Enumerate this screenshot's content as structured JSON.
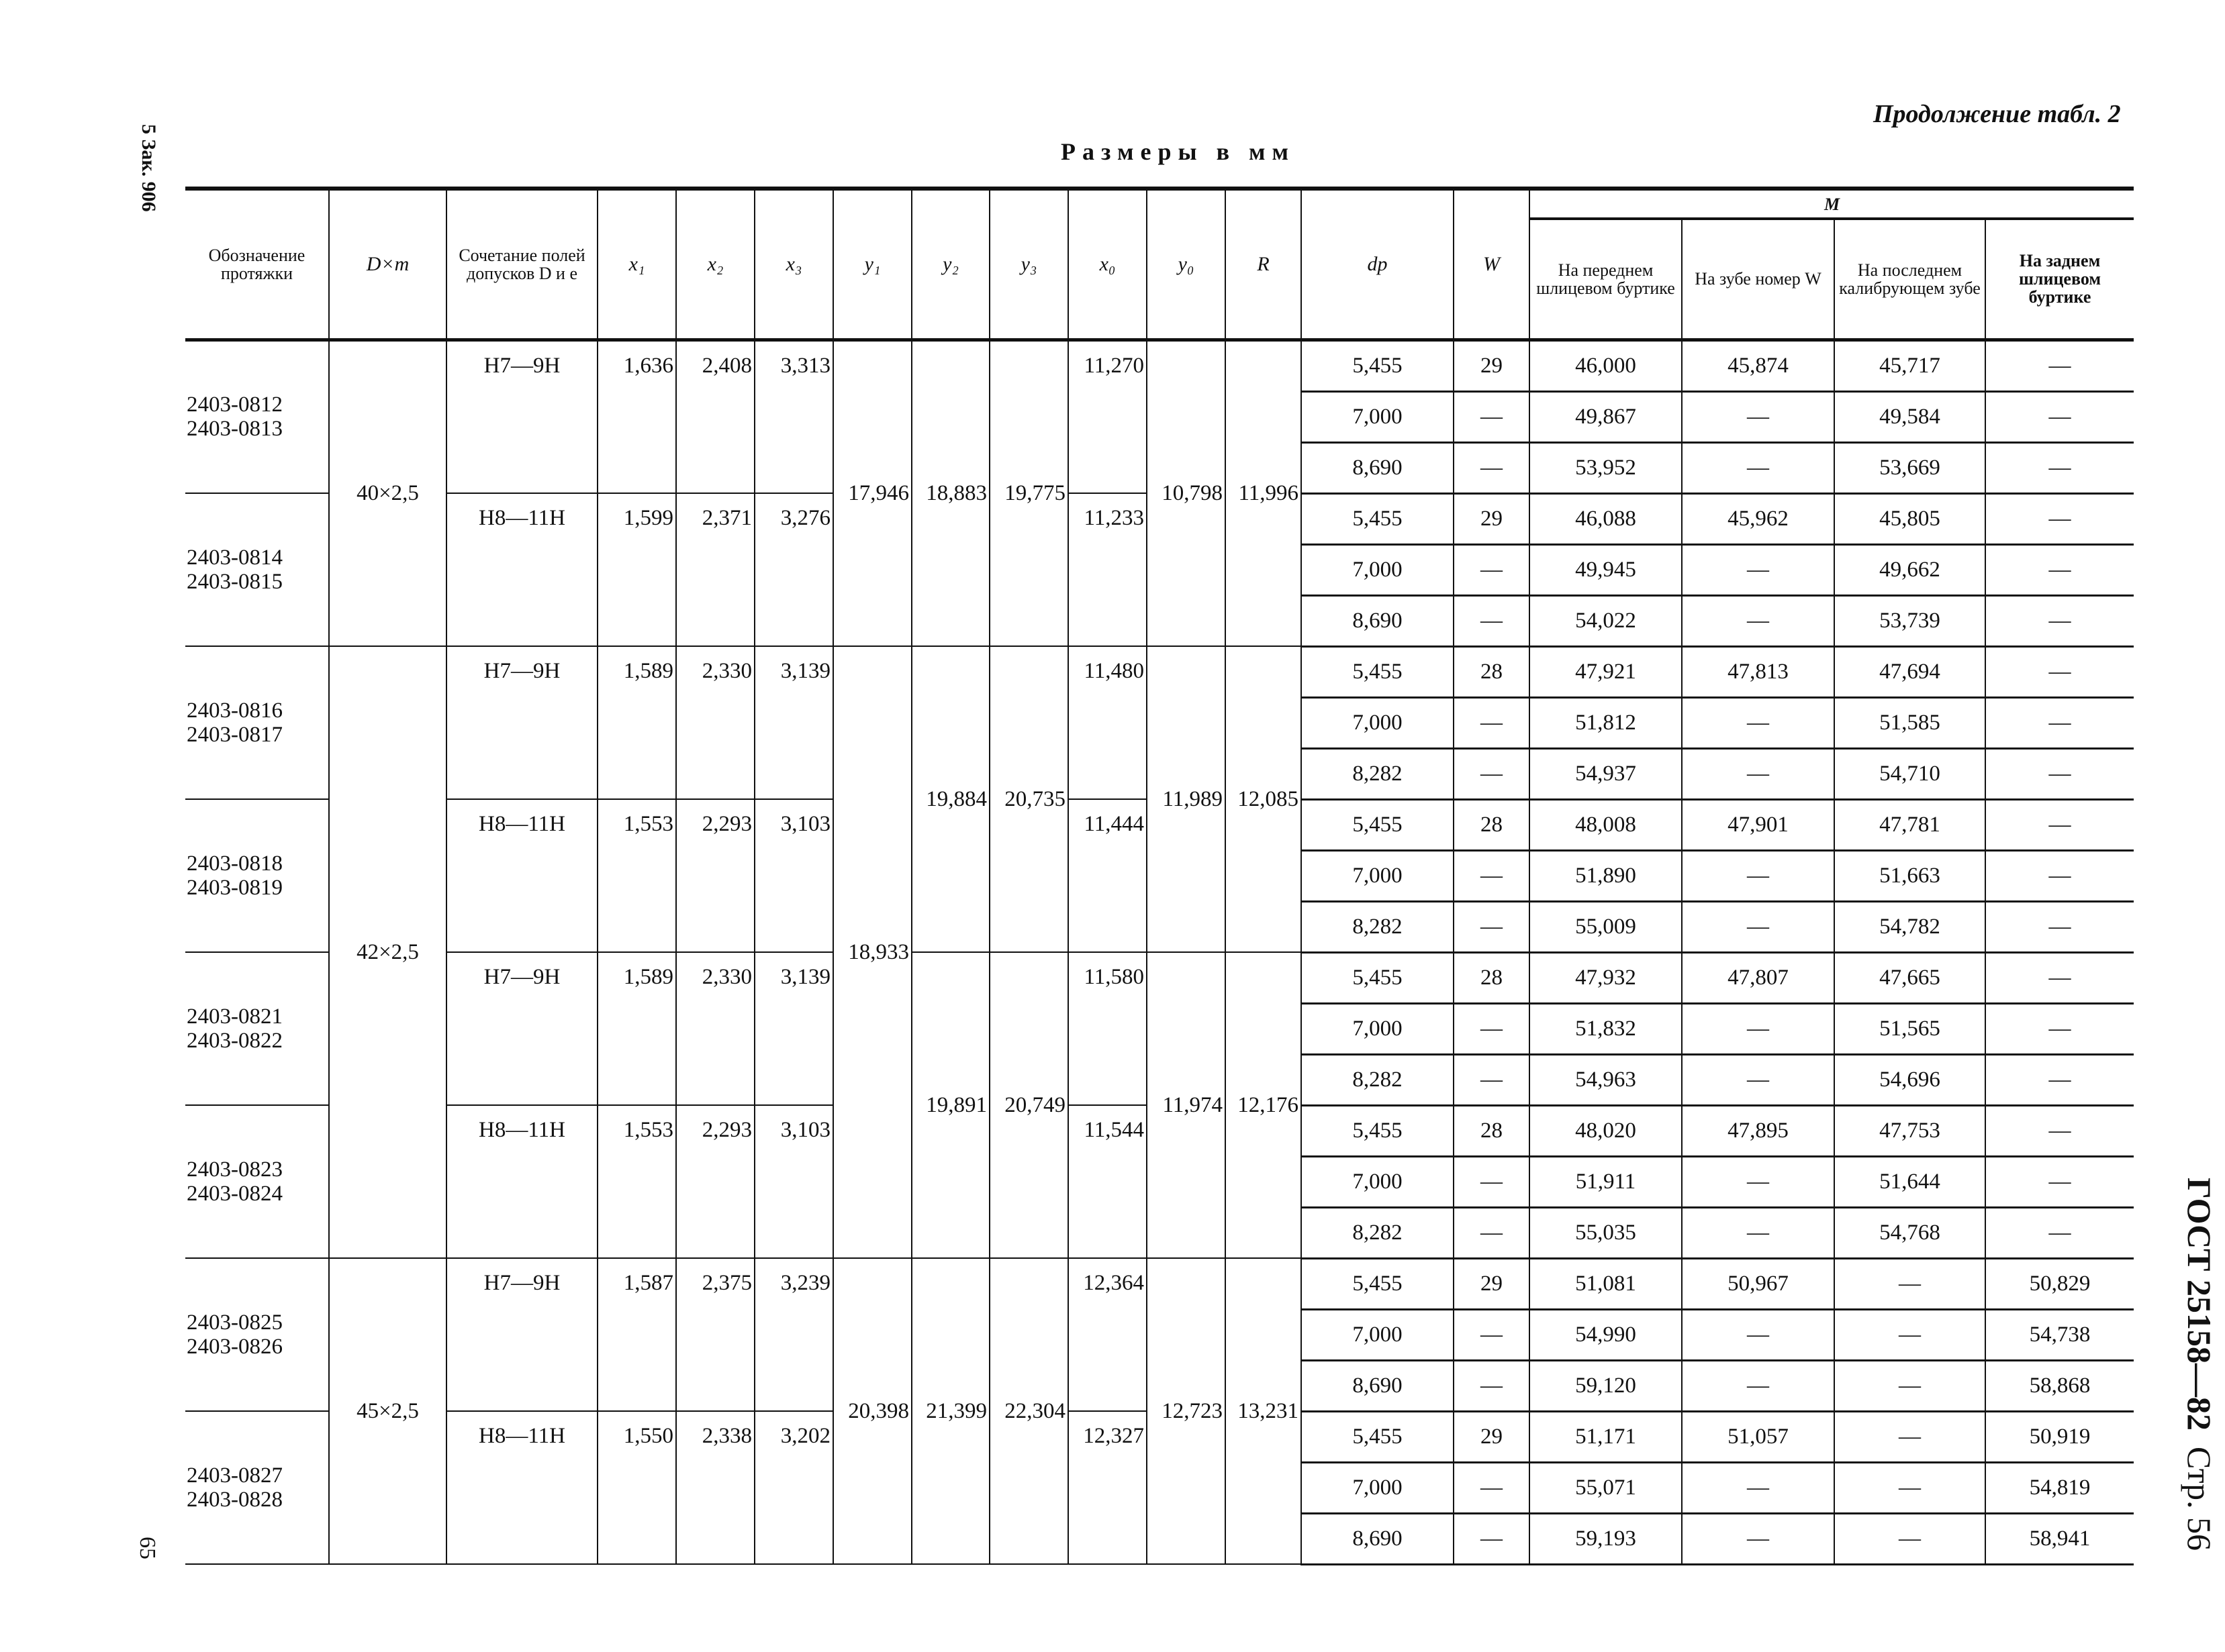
{
  "continuation": "Продолжение табл. 2",
  "units": "Размеры в мм",
  "left_margin_top": "5   Зак. 906",
  "left_margin_bottom": "65",
  "right_margin": {
    "standard": "ГОСТ 25158—82",
    "page": "Стр. 56"
  },
  "headers": {
    "designation": "Обозначение протяжки",
    "dxm": "D×m",
    "tolerance": "Сочетание полей допусков D и e",
    "x1": "x₁",
    "x2": "x₂",
    "x3": "x₃",
    "y1": "y₁",
    "y2": "y₂",
    "y3": "y₃",
    "x0": "x₀",
    "y0": "y₀",
    "R": "R",
    "dp": "dp",
    "W": "W",
    "M": "M",
    "m1": "На переднем шлицевом буртике",
    "m2": "На зубе номер W",
    "m3": "На последнем калибрующем зубе",
    "m4": "На заднем шлицевом буртике"
  },
  "dxm_blocks": [
    {
      "value": "40×2,5",
      "groups": 2
    },
    {
      "value": "42×2,5",
      "groups": 4
    },
    {
      "value": "45×2,5",
      "groups": 2
    }
  ],
  "y1_blocks": [
    {
      "value": "17,946",
      "groups": 2
    },
    {
      "value": "18,933",
      "groups": 4
    },
    {
      "value": "20,398",
      "groups": 2
    }
  ],
  "pairs": [
    {
      "y2": "18,883",
      "y3": "19,775",
      "y0": "10,798",
      "R": "11,996"
    },
    {
      "y2": "19,884",
      "y3": "20,735",
      "y0": "11,989",
      "R": "12,085"
    },
    {
      "y2": "19,891",
      "y3": "20,749",
      "y0": "11,974",
      "R": "12,176"
    },
    {
      "y2": "21,399",
      "y3": "22,304",
      "y0": "12,723",
      "R": "13,231"
    }
  ],
  "groups": [
    {
      "designations": [
        "2403-0812",
        "2403-0813"
      ],
      "tolerance": "H7—9H",
      "x1": "1,636",
      "x2": "2,408",
      "x3": "3,313",
      "x0": "11,270",
      "rows": [
        {
          "dp": "5,455",
          "W": "29",
          "m1": "46,000",
          "m2": "45,874",
          "m3": "45,717",
          "m4": "—"
        },
        {
          "dp": "7,000",
          "W": "—",
          "m1": "49,867",
          "m2": "—",
          "m3": "49,584",
          "m4": "—"
        },
        {
          "dp": "8,690",
          "W": "—",
          "m1": "53,952",
          "m2": "—",
          "m3": "53,669",
          "m4": "—"
        }
      ]
    },
    {
      "designations": [
        "2403-0814",
        "2403-0815"
      ],
      "tolerance": "H8—11H",
      "x1": "1,599",
      "x2": "2,371",
      "x3": "3,276",
      "x0": "11,233",
      "rows": [
        {
          "dp": "5,455",
          "W": "29",
          "m1": "46,088",
          "m2": "45,962",
          "m3": "45,805",
          "m4": "—"
        },
        {
          "dp": "7,000",
          "W": "—",
          "m1": "49,945",
          "m2": "—",
          "m3": "49,662",
          "m4": "—"
        },
        {
          "dp": "8,690",
          "W": "—",
          "m1": "54,022",
          "m2": "—",
          "m3": "53,739",
          "m4": "—"
        }
      ]
    },
    {
      "designations": [
        "2403-0816",
        "2403-0817"
      ],
      "tolerance": "H7—9H",
      "x1": "1,589",
      "x2": "2,330",
      "x3": "3,139",
      "x0": "11,480",
      "rows": [
        {
          "dp": "5,455",
          "W": "28",
          "m1": "47,921",
          "m2": "47,813",
          "m3": "47,694",
          "m4": "—"
        },
        {
          "dp": "7,000",
          "W": "—",
          "m1": "51,812",
          "m2": "—",
          "m3": "51,585",
          "m4": "—"
        },
        {
          "dp": "8,282",
          "W": "—",
          "m1": "54,937",
          "m2": "—",
          "m3": "54,710",
          "m4": "—"
        }
      ]
    },
    {
      "designations": [
        "2403-0818",
        "2403-0819"
      ],
      "tolerance": "H8—11H",
      "x1": "1,553",
      "x2": "2,293",
      "x3": "3,103",
      "x0": "11,444",
      "rows": [
        {
          "dp": "5,455",
          "W": "28",
          "m1": "48,008",
          "m2": "47,901",
          "m3": "47,781",
          "m4": "—"
        },
        {
          "dp": "7,000",
          "W": "—",
          "m1": "51,890",
          "m2": "—",
          "m3": "51,663",
          "m4": "—"
        },
        {
          "dp": "8,282",
          "W": "—",
          "m1": "55,009",
          "m2": "—",
          "m3": "54,782",
          "m4": "—"
        }
      ]
    },
    {
      "designations": [
        "2403-0821",
        "2403-0822"
      ],
      "tolerance": "H7—9H",
      "x1": "1,589",
      "x2": "2,330",
      "x3": "3,139",
      "x0": "11,580",
      "rows": [
        {
          "dp": "5,455",
          "W": "28",
          "m1": "47,932",
          "m2": "47,807",
          "m3": "47,665",
          "m4": "—"
        },
        {
          "dp": "7,000",
          "W": "—",
          "m1": "51,832",
          "m2": "—",
          "m3": "51,565",
          "m4": "—"
        },
        {
          "dp": "8,282",
          "W": "—",
          "m1": "54,963",
          "m2": "—",
          "m3": "54,696",
          "m4": "—"
        }
      ]
    },
    {
      "designations": [
        "2403-0823",
        "2403-0824"
      ],
      "tolerance": "H8—11H",
      "x1": "1,553",
      "x2": "2,293",
      "x3": "3,103",
      "x0": "11,544",
      "rows": [
        {
          "dp": "5,455",
          "W": "28",
          "m1": "48,020",
          "m2": "47,895",
          "m3": "47,753",
          "m4": "—"
        },
        {
          "dp": "7,000",
          "W": "—",
          "m1": "51,911",
          "m2": "—",
          "m3": "51,644",
          "m4": "—"
        },
        {
          "dp": "8,282",
          "W": "—",
          "m1": "55,035",
          "m2": "—",
          "m3": "54,768",
          "m4": "—"
        }
      ]
    },
    {
      "designations": [
        "2403-0825",
        "2403-0826"
      ],
      "tolerance": "H7—9H",
      "x1": "1,587",
      "x2": "2,375",
      "x3": "3,239",
      "x0": "12,364",
      "rows": [
        {
          "dp": "5,455",
          "W": "29",
          "m1": "51,081",
          "m2": "50,967",
          "m3": "—",
          "m4": "50,829"
        },
        {
          "dp": "7,000",
          "W": "—",
          "m1": "54,990",
          "m2": "—",
          "m3": "—",
          "m4": "54,738"
        },
        {
          "dp": "8,690",
          "W": "—",
          "m1": "59,120",
          "m2": "—",
          "m3": "—",
          "m4": "58,868"
        }
      ]
    },
    {
      "designations": [
        "2403-0827",
        "2403-0828"
      ],
      "tolerance": "H8—11H",
      "x1": "1,550",
      "x2": "2,338",
      "x3": "3,202",
      "x0": "12,327",
      "rows": [
        {
          "dp": "5,455",
          "W": "29",
          "m1": "51,171",
          "m2": "51,057",
          "m3": "—",
          "m4": "50,919"
        },
        {
          "dp": "7,000",
          "W": "—",
          "m1": "55,071",
          "m2": "—",
          "m3": "—",
          "m4": "54,819"
        },
        {
          "dp": "8,690",
          "W": "—",
          "m1": "59,193",
          "m2": "—",
          "m3": "—",
          "m4": "58,941"
        }
      ]
    }
  ]
}
